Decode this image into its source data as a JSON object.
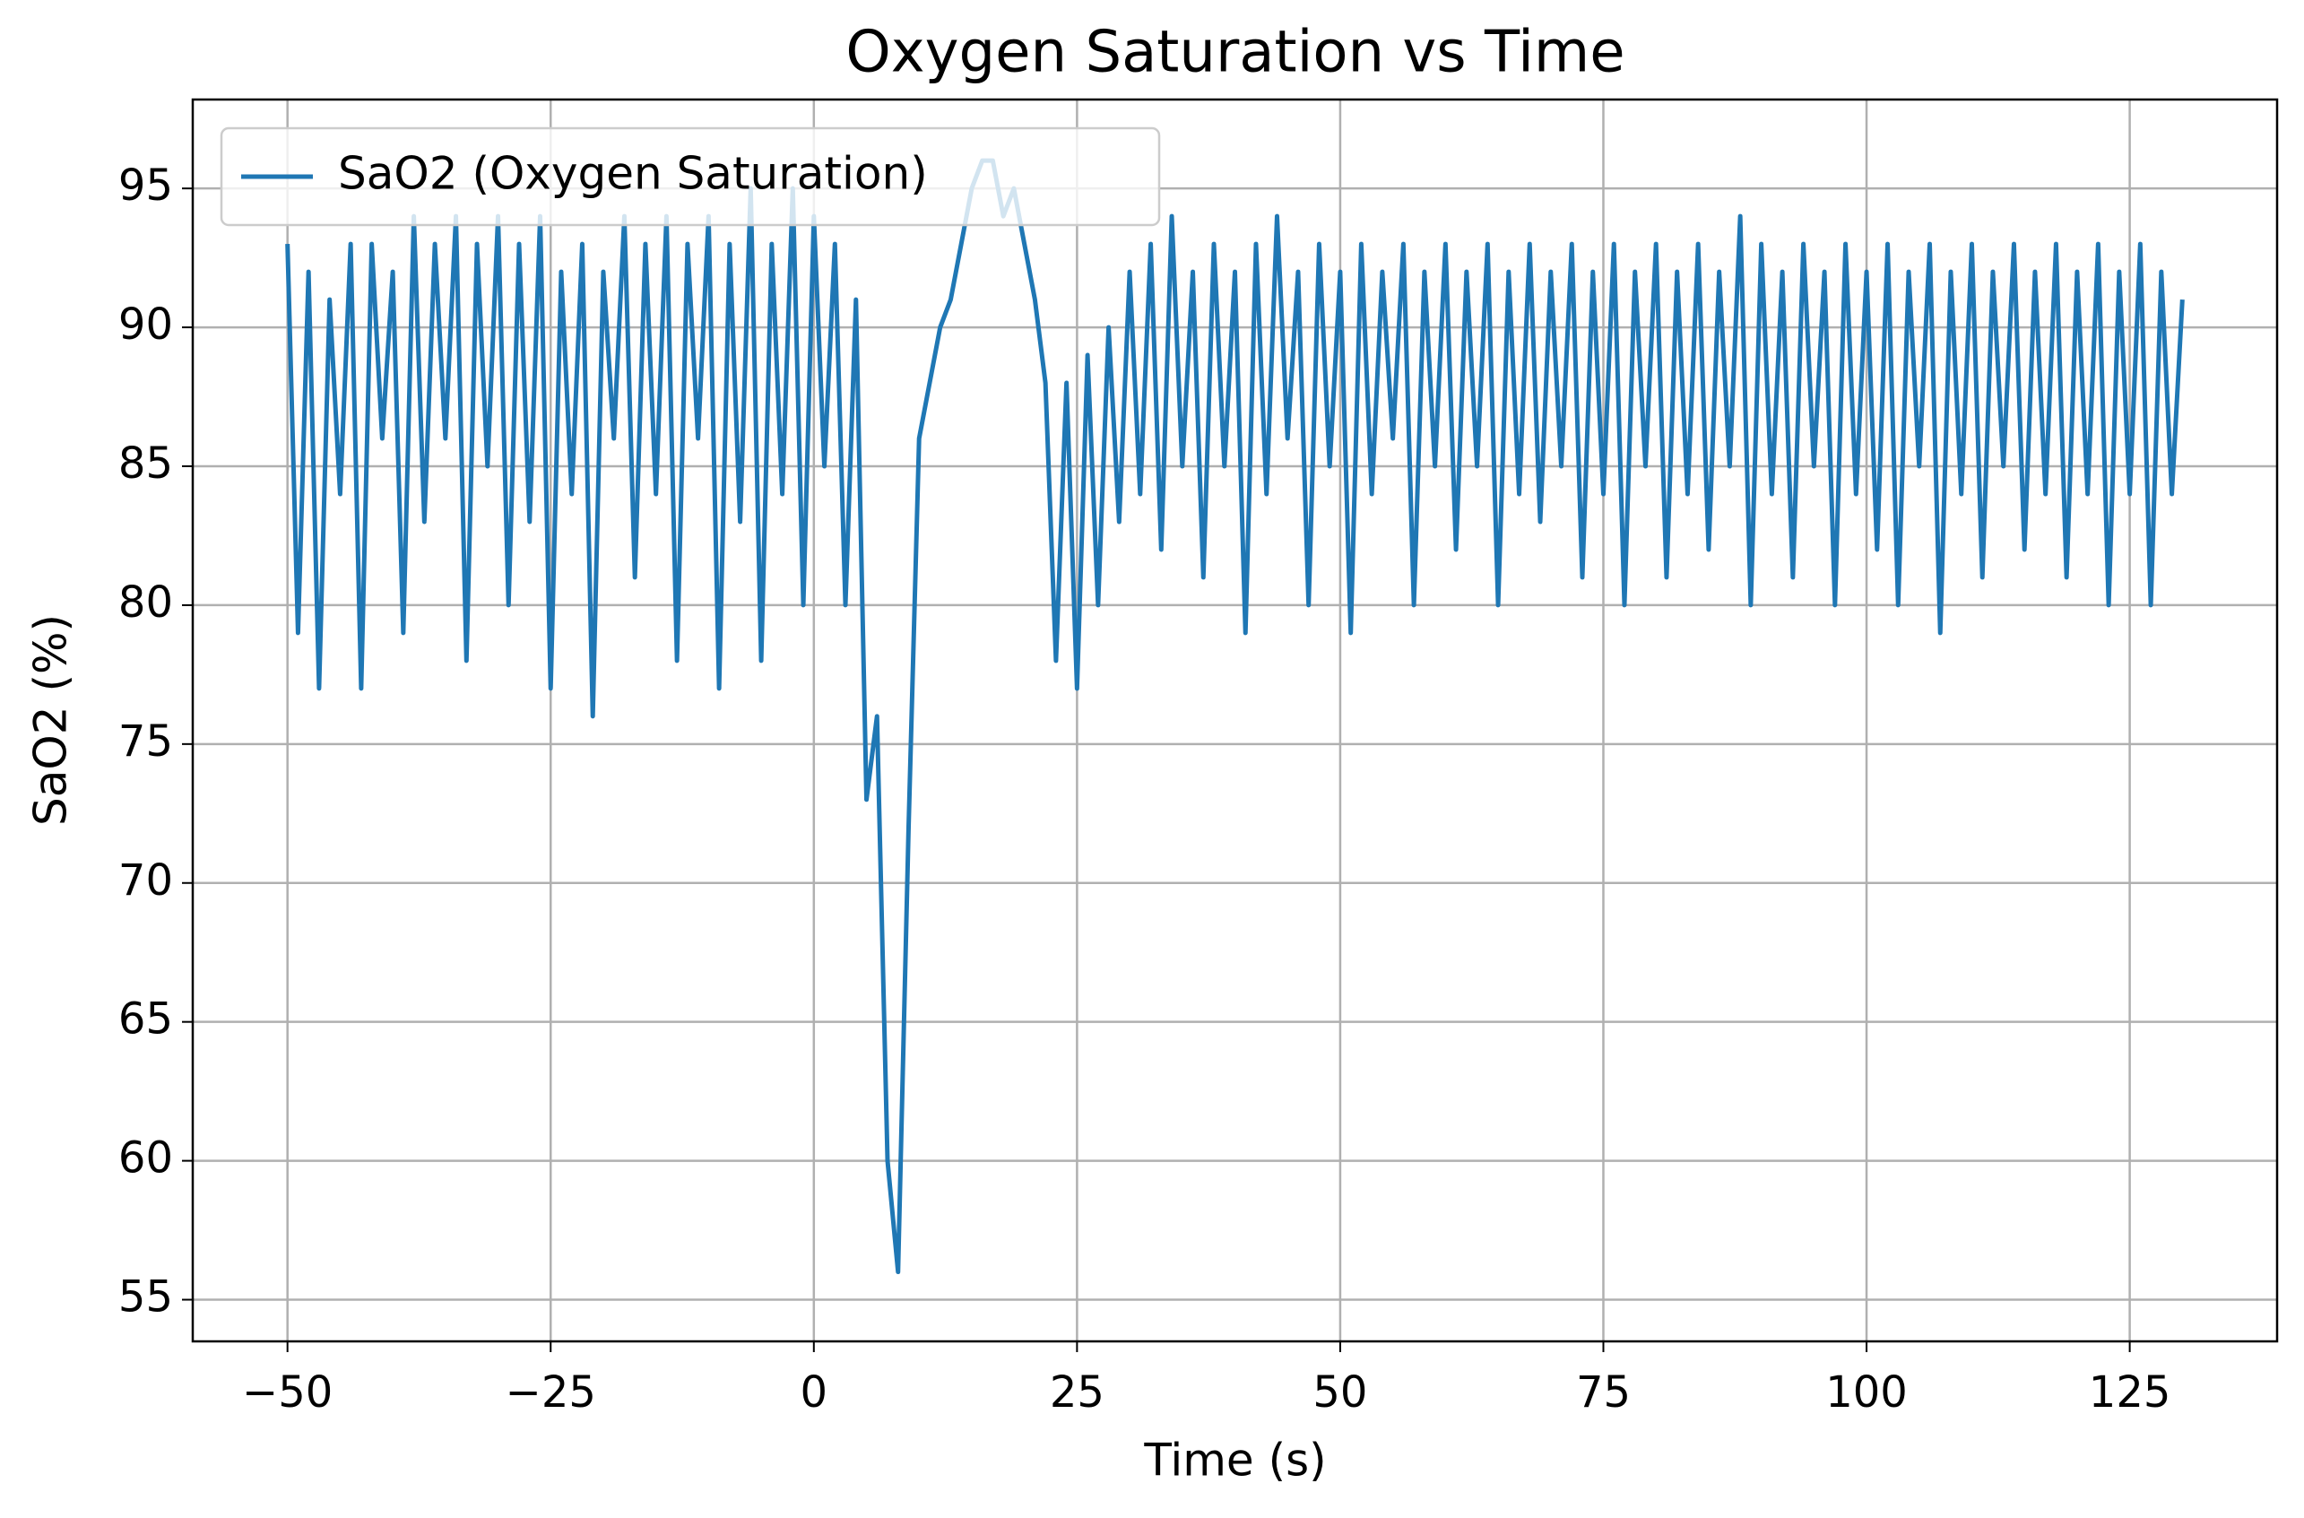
{
  "chart_data": {
    "type": "line",
    "title": "Oxygen Saturation vs Time",
    "x_label": "Time (s)",
    "y_label": "SaO2 (%)",
    "xlim": [
      -59,
      139
    ],
    "ylim": [
      53.5,
      98.2
    ],
    "xticks": [
      {
        "value": -50,
        "label": "−50"
      },
      {
        "value": -25,
        "label": "−25"
      },
      0,
      25,
      50,
      75,
      100,
      125
    ],
    "yticks": [
      55,
      60,
      65,
      70,
      75,
      80,
      85,
      90,
      95
    ],
    "grid": true,
    "legend": "upper left",
    "x": [
      -50,
      -49,
      -48,
      -47,
      -46,
      -45,
      -44,
      -43,
      -42,
      -41,
      -40,
      -39,
      -38,
      -37,
      -36,
      -35,
      -34,
      -33,
      -32,
      -31,
      -30,
      -29,
      -28,
      -27,
      -26,
      -25,
      -24,
      -23,
      -22,
      -21,
      -20,
      -19,
      -18,
      -17,
      -16,
      -15,
      -14,
      -13,
      -12,
      -11,
      -10,
      -9,
      -8,
      -7,
      -6,
      -5,
      -4,
      -3,
      -2,
      -1,
      0,
      1,
      2,
      3,
      4,
      5,
      6,
      7,
      8,
      9,
      10,
      11,
      12,
      13,
      14,
      15,
      16,
      17,
      18,
      19,
      20,
      21,
      22,
      23,
      24,
      25,
      26,
      27,
      28,
      29,
      30,
      31,
      32,
      33,
      34,
      35,
      36,
      37,
      38,
      39,
      40,
      41,
      42,
      43,
      44,
      45,
      46,
      47,
      48,
      49,
      50,
      51,
      52,
      53,
      54,
      55,
      56,
      57,
      58,
      59,
      60,
      61,
      62,
      63,
      64,
      65,
      66,
      67,
      68,
      69,
      70,
      71,
      72,
      73,
      74,
      75,
      76,
      77,
      78,
      79,
      80,
      81,
      82,
      83,
      84,
      85,
      86,
      87,
      88,
      89,
      90,
      91,
      92,
      93,
      94,
      95,
      96,
      97,
      98,
      99,
      100,
      101,
      102,
      103,
      104,
      105,
      106,
      107,
      108,
      109,
      110,
      111,
      112,
      113,
      114,
      115,
      116,
      117,
      118,
      119,
      120,
      121,
      122,
      123,
      124,
      125,
      126,
      127,
      128,
      129,
      130
    ],
    "series": [
      {
        "name": "SaO2 (Oxygen Saturation)",
        "color": "#1f77b4",
        "values": [
          93,
          79,
          92,
          77,
          91,
          84,
          93,
          77,
          93,
          86,
          92,
          79,
          94,
          83,
          93,
          86,
          94,
          78,
          93,
          85,
          94,
          80,
          93,
          83,
          94,
          77,
          92,
          84,
          93,
          76,
          92,
          86,
          94,
          81,
          93,
          84,
          94,
          78,
          93,
          86,
          94,
          77,
          93,
          83,
          95,
          78,
          93,
          84,
          95,
          80,
          94,
          85,
          93,
          80,
          91,
          73,
          76,
          60,
          56,
          72,
          86,
          88,
          90,
          91,
          93,
          95,
          96,
          96,
          94,
          95,
          93,
          91,
          88,
          78,
          88,
          77,
          89,
          80,
          90,
          83,
          92,
          84,
          93,
          82,
          94,
          85,
          92,
          81,
          93,
          85,
          92,
          79,
          93,
          84,
          94,
          86,
          92,
          80,
          93,
          85,
          92,
          79,
          93,
          84,
          92,
          86,
          93,
          80,
          92,
          85,
          93,
          82,
          92,
          85,
          93,
          80,
          92,
          84,
          93,
          83,
          92,
          85,
          93,
          81,
          92,
          84,
          93,
          80,
          92,
          85,
          93,
          81,
          92,
          84,
          93,
          82,
          92,
          85,
          94,
          80,
          93,
          84,
          92,
          81,
          93,
          85,
          92,
          80,
          93,
          84,
          92,
          82,
          93,
          80,
          92,
          85,
          93,
          79,
          92,
          84,
          93,
          81,
          92,
          85,
          93,
          82,
          92,
          84,
          93,
          81,
          92,
          84,
          93,
          80,
          92,
          84,
          93,
          80,
          92,
          84,
          91
        ]
      }
    ]
  }
}
